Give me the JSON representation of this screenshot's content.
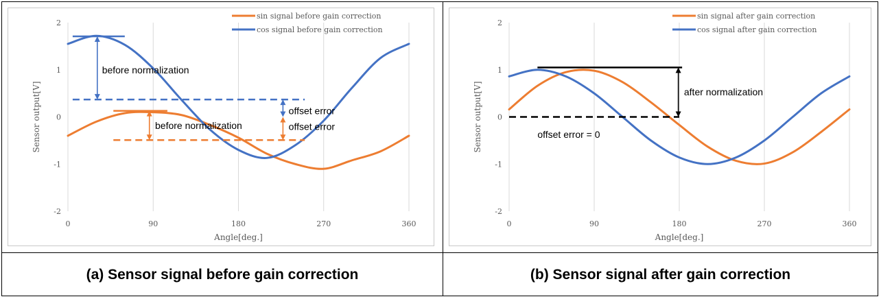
{
  "captions": {
    "a": "(a) Sensor signal before gain correction",
    "b": "(b) Sensor signal after gain correction"
  },
  "colors": {
    "sin": "#ED7D31",
    "cos": "#4472C4",
    "grid": "#D9D9D9",
    "black": "#000000"
  },
  "chart_data": [
    {
      "type": "line",
      "xlabel": "Angle[deg.]",
      "ylabel": "Sensor output[V]",
      "xlim": [
        0,
        360
      ],
      "ylim": [
        -2,
        2
      ],
      "xticks": [
        0,
        90,
        180,
        270,
        360
      ],
      "yticks": [
        2,
        1,
        0,
        -1,
        -2
      ],
      "grid": "vertical",
      "legend_position": "top-right",
      "x": [
        0,
        30,
        60,
        90,
        120,
        150,
        180,
        210,
        240,
        270,
        300,
        330,
        360
      ],
      "series": [
        {
          "name": "sin signal before gain correction",
          "color": "#ED7D31",
          "values": [
            -0.4,
            -0.1,
            0.08,
            0.1,
            0.04,
            -0.17,
            -0.44,
            -0.78,
            -1.0,
            -1.1,
            -0.92,
            -0.73,
            -0.4
          ]
        },
        {
          "name": "cos signal before gain correction",
          "color": "#4472C4",
          "values": [
            1.55,
            1.72,
            1.53,
            1.03,
            0.36,
            -0.27,
            -0.7,
            -0.87,
            -0.6,
            -0.08,
            0.62,
            1.25,
            1.55
          ]
        }
      ],
      "annotations": {
        "before_norm_cos": "before normalization",
        "before_norm_sin": "before normalization",
        "offset_cos": "offset error",
        "offset_sin": "offset error"
      }
    },
    {
      "type": "line",
      "xlabel": "Angle[deg.]",
      "ylabel": "Sensor output[V]",
      "xlim": [
        0,
        360
      ],
      "ylim": [
        -2,
        2
      ],
      "xticks": [
        0,
        90,
        180,
        270,
        360
      ],
      "yticks": [
        2,
        1,
        0,
        -1,
        -2
      ],
      "grid": "vertical",
      "legend_position": "top-right",
      "x": [
        0,
        30,
        60,
        90,
        120,
        150,
        180,
        210,
        240,
        270,
        300,
        330,
        360
      ],
      "series": [
        {
          "name": "sin signal after gain correction",
          "color": "#ED7D31",
          "values": [
            0.16,
            0.66,
            0.95,
            0.98,
            0.74,
            0.31,
            -0.17,
            -0.63,
            -0.93,
            -0.99,
            -0.75,
            -0.32,
            0.16
          ]
        },
        {
          "name": "cos signal after gain correction",
          "color": "#4472C4",
          "values": [
            0.86,
            1.0,
            0.86,
            0.5,
            0.0,
            -0.5,
            -0.86,
            -1.0,
            -0.86,
            -0.5,
            0.0,
            0.5,
            0.86
          ]
        }
      ],
      "annotations": {
        "after_norm": "after normalization",
        "offset_zero": "offset error = 0"
      }
    }
  ]
}
